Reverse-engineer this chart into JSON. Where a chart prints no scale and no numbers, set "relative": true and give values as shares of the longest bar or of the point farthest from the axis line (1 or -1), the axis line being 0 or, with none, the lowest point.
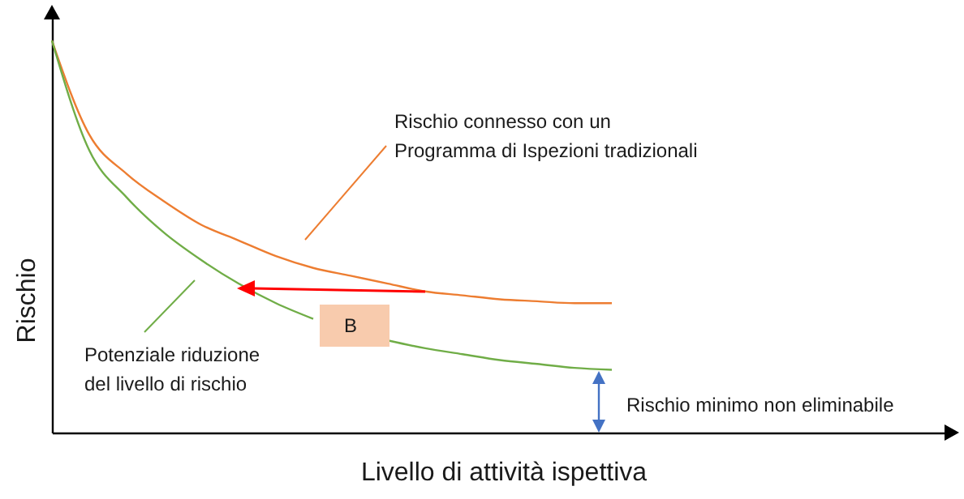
{
  "chart_data": {
    "type": "line",
    "relative": true,
    "xlabel": "Livello di attività ispettiva",
    "ylabel": "Rischio",
    "categories": [
      null,
      null,
      null,
      null,
      null,
      null,
      null,
      null,
      null,
      null,
      null,
      null,
      null,
      null,
      null,
      null,
      null,
      null,
      null,
      null,
      null,
      null,
      null,
      null,
      null
    ],
    "series": [
      {
        "color": "#ed7d31",
        "values": [
          1,
          0.76,
          0.66,
          0.59,
          0.53,
          0.49,
          0.45,
          0.42,
          0.4,
          0.38,
          0.36,
          0.35,
          0.34,
          0.335,
          0.33,
          0.33,
          null,
          null,
          null,
          null,
          null,
          null,
          null,
          null,
          null
        ]
      },
      {
        "color": "#70ad47",
        "values": [
          1,
          0.72,
          0.6,
          0.51,
          0.44,
          0.38,
          0.33,
          0.29,
          null,
          0.235,
          0.215,
          0.2,
          0.185,
          0.175,
          0.165,
          0.16,
          null,
          null,
          null,
          null,
          null,
          null,
          null,
          null,
          null
        ]
      }
    ],
    "annotations": [
      "Rischio connesso con un\nProgramma di Ispezioni tradizionali",
      "Potenziale riduzione\ndel livello di rischio",
      "B",
      "Rischio minimo non eliminabile"
    ]
  }
}
